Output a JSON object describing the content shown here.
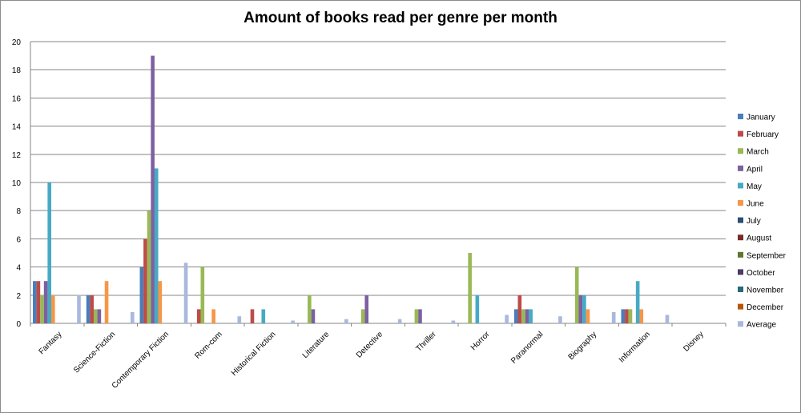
{
  "chart_data": {
    "type": "bar",
    "title": "Amount of books read per genre per month",
    "xlabel": "",
    "ylabel": "",
    "ylim": [
      0,
      20
    ],
    "yticks": [
      0,
      2,
      4,
      6,
      8,
      10,
      12,
      14,
      16,
      18,
      20
    ],
    "grid": true,
    "legend": "right",
    "categories": [
      "Fantasy",
      "Science-Fiction",
      "Contemporary Fiction",
      "Rom-com",
      "Historical Fiction",
      "Literature",
      "Detective",
      "Thriller",
      "Horror",
      "Paranormal",
      "Biography",
      "Information",
      "Disney"
    ],
    "series": [
      {
        "name": "January",
        "color": "#4a7ebb",
        "values": [
          3,
          2,
          4,
          0,
          0,
          0,
          0,
          0,
          0,
          1,
          0,
          1,
          0
        ]
      },
      {
        "name": "February",
        "color": "#be4b48",
        "values": [
          3,
          2,
          6,
          1,
          1,
          0,
          0,
          0,
          0,
          2,
          0,
          1,
          0
        ]
      },
      {
        "name": "March",
        "color": "#98b954",
        "values": [
          2,
          1,
          8,
          4,
          0,
          2,
          1,
          1,
          5,
          1,
          4,
          1,
          0
        ]
      },
      {
        "name": "April",
        "color": "#7d60a0",
        "values": [
          3,
          1,
          19,
          0,
          0,
          1,
          2,
          1,
          0,
          1,
          2,
          0,
          0
        ]
      },
      {
        "name": "May",
        "color": "#46aac5",
        "values": [
          10,
          0,
          11,
          0,
          1,
          0,
          0,
          0,
          2,
          1,
          2,
          3,
          0
        ]
      },
      {
        "name": "June",
        "color": "#f79646",
        "values": [
          2,
          3,
          3,
          1,
          0,
          0,
          0,
          0,
          0,
          0,
          1,
          1,
          0
        ]
      },
      {
        "name": "July",
        "color": "#2c4d75",
        "values": [
          0,
          0,
          0,
          0,
          0,
          0,
          0,
          0,
          0,
          0,
          0,
          0,
          0
        ]
      },
      {
        "name": "August",
        "color": "#772c2a",
        "values": [
          0,
          0,
          0,
          0,
          0,
          0,
          0,
          0,
          0,
          0,
          0,
          0,
          0
        ]
      },
      {
        "name": "September",
        "color": "#5f7530",
        "values": [
          0,
          0,
          0,
          0,
          0,
          0,
          0,
          0,
          0,
          0,
          0,
          0,
          0
        ]
      },
      {
        "name": "October",
        "color": "#4d3b62",
        "values": [
          0,
          0,
          0,
          0,
          0,
          0,
          0,
          0,
          0,
          0,
          0,
          0,
          0
        ]
      },
      {
        "name": "November",
        "color": "#276a7c",
        "values": [
          0,
          0,
          0,
          0,
          0,
          0,
          0,
          0,
          0,
          0,
          0,
          0,
          0
        ]
      },
      {
        "name": "December",
        "color": "#b65708",
        "values": [
          0,
          0,
          0,
          0,
          0,
          0,
          0,
          0,
          0,
          0,
          0,
          0,
          0
        ]
      },
      {
        "name": "Average",
        "color": "#a9b8dc",
        "values": [
          2,
          0.8,
          4.3,
          0.5,
          0.2,
          0.3,
          0.3,
          0.2,
          0.6,
          0.5,
          0.8,
          0.6,
          0
        ]
      }
    ]
  }
}
